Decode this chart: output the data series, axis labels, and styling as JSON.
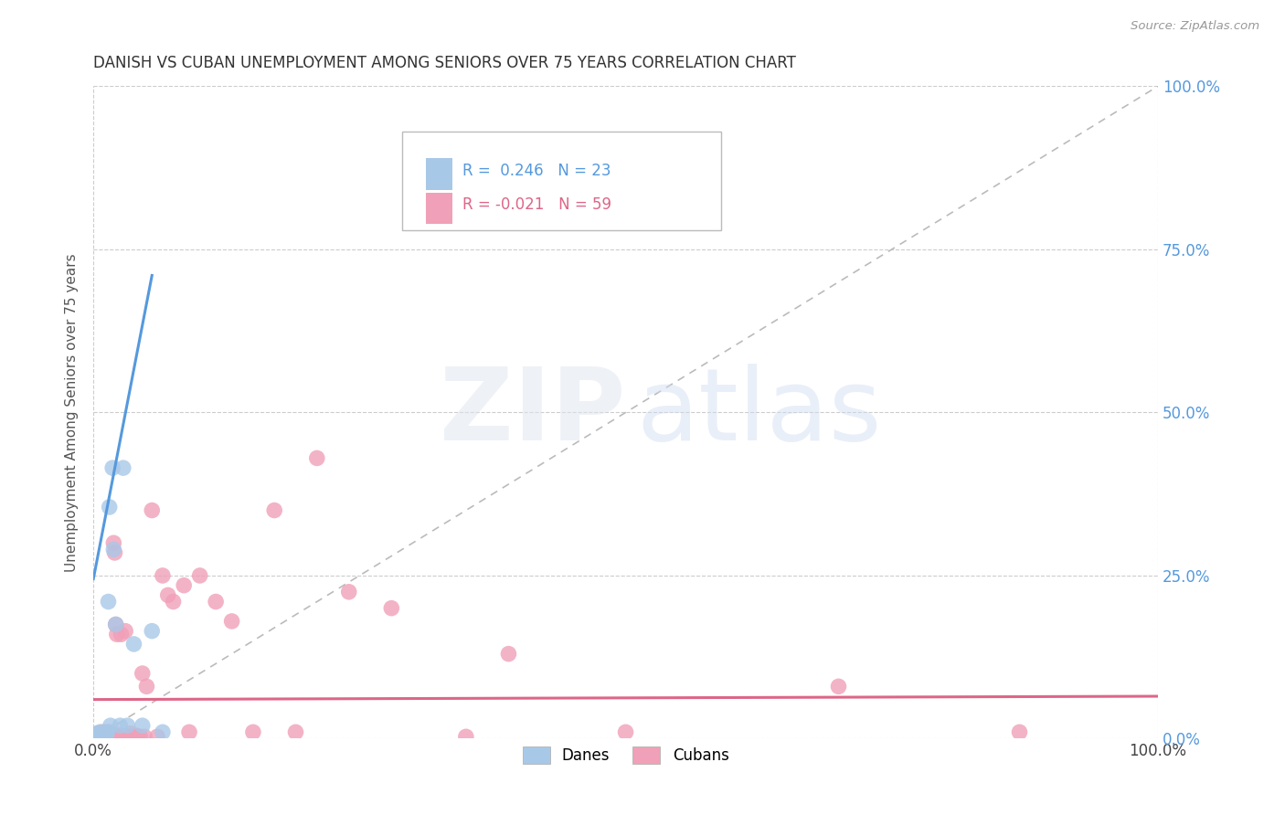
{
  "title": "DANISH VS CUBAN UNEMPLOYMENT AMONG SENIORS OVER 75 YEARS CORRELATION CHART",
  "source": "Source: ZipAtlas.com",
  "ylabel": "Unemployment Among Seniors over 75 years",
  "xlim": [
    0,
    1
  ],
  "ylim": [
    0,
    1
  ],
  "ytick_labels": [
    "0.0%",
    "25.0%",
    "50.0%",
    "75.0%",
    "100.0%"
  ],
  "ytick_values": [
    0,
    0.25,
    0.5,
    0.75,
    1.0
  ],
  "xtick_left": "0.0%",
  "xtick_right": "100.0%",
  "legend_danes_R": " 0.246",
  "legend_danes_N": "23",
  "legend_cubans_R": "-0.021",
  "legend_cubans_N": "59",
  "danes_color": "#A8C8E8",
  "cubans_color": "#F0A0B8",
  "danes_line_color": "#5599DD",
  "cubans_line_color": "#DD6688",
  "diag_line_color": "#BBBBBB",
  "background_color": "#FFFFFF",
  "danes_x": [
    0.004,
    0.004,
    0.006,
    0.007,
    0.008,
    0.009,
    0.01,
    0.011,
    0.012,
    0.013,
    0.014,
    0.015,
    0.016,
    0.018,
    0.019,
    0.021,
    0.025,
    0.028,
    0.032,
    0.038,
    0.046,
    0.055,
    0.065
  ],
  "danes_y": [
    0.005,
    0.008,
    0.01,
    0.003,
    0.003,
    0.008,
    0.003,
    0.005,
    0.003,
    0.01,
    0.21,
    0.355,
    0.02,
    0.415,
    0.29,
    0.175,
    0.02,
    0.415,
    0.02,
    0.145,
    0.02,
    0.165,
    0.01
  ],
  "cubans_x": [
    0.003,
    0.004,
    0.005,
    0.006,
    0.007,
    0.007,
    0.008,
    0.008,
    0.009,
    0.01,
    0.01,
    0.011,
    0.012,
    0.012,
    0.013,
    0.014,
    0.015,
    0.016,
    0.017,
    0.018,
    0.019,
    0.02,
    0.021,
    0.022,
    0.023,
    0.025,
    0.026,
    0.028,
    0.03,
    0.032,
    0.035,
    0.037,
    0.04,
    0.042,
    0.044,
    0.046,
    0.048,
    0.05,
    0.055,
    0.06,
    0.065,
    0.07,
    0.075,
    0.085,
    0.09,
    0.1,
    0.115,
    0.13,
    0.15,
    0.17,
    0.19,
    0.21,
    0.24,
    0.28,
    0.35,
    0.39,
    0.5,
    0.7,
    0.87
  ],
  "cubans_y": [
    0.005,
    0.008,
    0.003,
    0.005,
    0.003,
    0.008,
    0.003,
    0.01,
    0.005,
    0.003,
    0.008,
    0.01,
    0.003,
    0.005,
    0.008,
    0.003,
    0.01,
    0.005,
    0.003,
    0.007,
    0.3,
    0.285,
    0.175,
    0.16,
    0.003,
    0.005,
    0.16,
    0.003,
    0.165,
    0.003,
    0.008,
    0.003,
    0.005,
    0.003,
    0.003,
    0.1,
    0.003,
    0.08,
    0.35,
    0.003,
    0.25,
    0.22,
    0.21,
    0.235,
    0.01,
    0.25,
    0.21,
    0.18,
    0.01,
    0.35,
    0.01,
    0.43,
    0.225,
    0.2,
    0.003,
    0.13,
    0.01,
    0.08,
    0.01
  ],
  "danes_line_x0": 0.0,
  "danes_line_y0": 0.245,
  "danes_line_x1": 0.055,
  "danes_line_y1": 0.71,
  "cubans_line_x0": 0.0,
  "cubans_line_y0": 0.06,
  "cubans_line_x1": 1.0,
  "cubans_line_y1": 0.065
}
